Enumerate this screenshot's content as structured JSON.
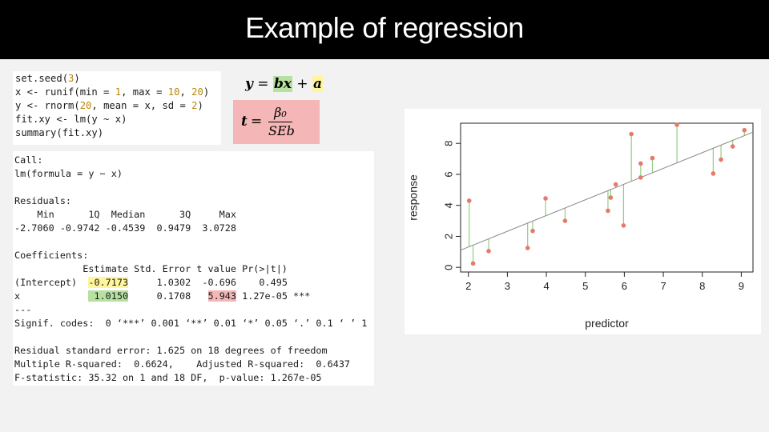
{
  "slide": {
    "title": "Example of regression"
  },
  "code": {
    "lines": [
      [
        "set.seed(",
        {
          "n": "3"
        },
        ")"
      ],
      [
        "x <- runif(min = ",
        {
          "n": "1"
        },
        ", max = ",
        {
          "n": "10"
        },
        ", ",
        {
          "n": "20"
        },
        ")"
      ],
      [
        "y <- rnorm(",
        {
          "n": "20"
        },
        ", mean = x, sd = ",
        {
          "n": "2"
        },
        ")"
      ],
      [
        "fit.xy <- lm(y ~ x)"
      ],
      [
        "summary(fit.xy)"
      ]
    ]
  },
  "output": {
    "lines": [
      "Call:",
      "lm(formula = y ~ x)",
      "",
      "Residuals:",
      "    Min      1Q  Median      3Q     Max ",
      "-2.7060 -0.9742 -0.4539  0.9479  3.0728 ",
      "",
      "Coefficients:",
      "            Estimate Std. Error t value Pr(>|t|)    ",
      [
        "(Intercept)  ",
        {
          "hl": "y",
          "t": "-0.7173"
        },
        "     1.0302  -0.696    0.495    "
      ],
      [
        "x            ",
        {
          "hl": "g",
          "t": " 1.0150"
        },
        "     0.1708   ",
        {
          "hl": "r",
          "t": "5.943"
        },
        " 1.27e-05 ***"
      ],
      "---",
      "Signif. codes:  0 ‘***’ 0.001 ‘**’ 0.01 ‘*’ 0.05 ‘.’ 0.1 ‘ ’ 1",
      "",
      "Residual standard error: 1.625 on 18 degrees of freedom",
      "Multiple R-squared:  0.6624,\tAdjusted R-squared:  0.6437 ",
      "F-statistic: 35.32 on 1 and 18 DF,  p-value: 1.267e-05"
    ]
  },
  "equations": {
    "line_eq": {
      "y": "y",
      "eq": " = ",
      "bx": "bx",
      "plus": " + ",
      "a": "a"
    },
    "t_eq": {
      "t": "t",
      "eq": "=",
      "num": "β₀",
      "den": "SEb"
    }
  },
  "colors": {
    "intercept_highlight": "#fff59d",
    "slope_highlight": "#b7e1a1",
    "tvalue_highlight": "#f4b6b6",
    "points": "#e8786a",
    "residual_lines": "#8fcf7f",
    "fit_line": "#888888"
  },
  "chart_data": {
    "type": "scatter",
    "xlabel": "predictor",
    "ylabel": "response",
    "xlim": [
      1.8,
      9.3
    ],
    "ylim": [
      -0.3,
      9.3
    ],
    "xticks": [
      2,
      3,
      4,
      5,
      6,
      7,
      8,
      9
    ],
    "yticks": [
      0,
      2,
      4,
      6,
      8
    ],
    "fit": {
      "intercept": -0.7173,
      "slope": 1.015
    },
    "points": [
      [
        2.02,
        4.3
      ],
      [
        2.12,
        0.25
      ],
      [
        2.52,
        1.05
      ],
      [
        3.52,
        1.25
      ],
      [
        3.65,
        2.35
      ],
      [
        3.98,
        4.45
      ],
      [
        4.48,
        3.0
      ],
      [
        5.58,
        3.65
      ],
      [
        5.65,
        4.5
      ],
      [
        5.78,
        5.35
      ],
      [
        5.98,
        2.7
      ],
      [
        6.18,
        8.6
      ],
      [
        6.42,
        5.8
      ],
      [
        6.42,
        6.7
      ],
      [
        6.72,
        7.05
      ],
      [
        7.35,
        9.2
      ],
      [
        8.28,
        6.05
      ],
      [
        8.48,
        6.95
      ],
      [
        8.78,
        7.8
      ],
      [
        9.08,
        8.85
      ]
    ]
  }
}
